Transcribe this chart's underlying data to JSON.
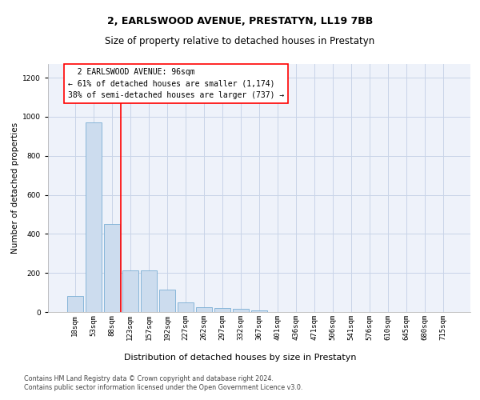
{
  "title": "2, EARLSWOOD AVENUE, PRESTATYN, LL19 7BB",
  "subtitle": "Size of property relative to detached houses in Prestatyn",
  "xlabel": "Distribution of detached houses by size in Prestatyn",
  "ylabel": "Number of detached properties",
  "footer_line1": "Contains HM Land Registry data © Crown copyright and database right 2024.",
  "footer_line2": "Contains public sector information licensed under the Open Government Licence v3.0.",
  "annotation_line1": "  2 EARLSWOOD AVENUE: 96sqm",
  "annotation_line2": "← 61% of detached houses are smaller (1,174)",
  "annotation_line3": "38% of semi-detached houses are larger (737) →",
  "bar_color": "#ccdcee",
  "bar_edge_color": "#7bafd4",
  "categories": [
    "18sqm",
    "53sqm",
    "88sqm",
    "123sqm",
    "157sqm",
    "192sqm",
    "227sqm",
    "262sqm",
    "297sqm",
    "332sqm",
    "367sqm",
    "401sqm",
    "436sqm",
    "471sqm",
    "506sqm",
    "541sqm",
    "576sqm",
    "610sqm",
    "645sqm",
    "680sqm",
    "715sqm"
  ],
  "values": [
    80,
    970,
    450,
    215,
    215,
    115,
    48,
    25,
    22,
    15,
    10,
    0,
    0,
    0,
    0,
    0,
    0,
    0,
    0,
    0,
    0
  ],
  "ylim": [
    0,
    1270
  ],
  "yticks": [
    0,
    200,
    400,
    600,
    800,
    1000,
    1200
  ],
  "grid_color": "#c8d4e8",
  "background_color": "#eef2fa",
  "title_fontsize": 9,
  "subtitle_fontsize": 8.5,
  "xlabel_fontsize": 8,
  "ylabel_fontsize": 7.5,
  "tick_fontsize": 6.5,
  "annotation_fontsize": 7,
  "footer_fontsize": 5.8
}
